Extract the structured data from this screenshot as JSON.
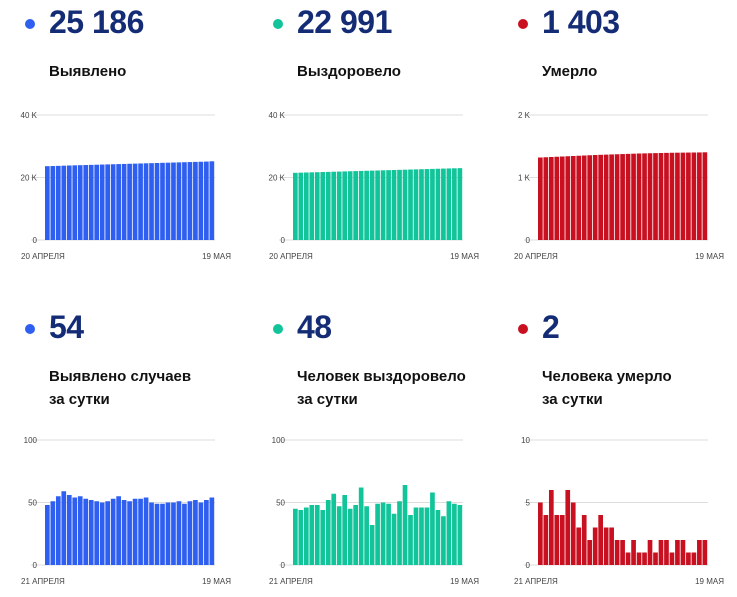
{
  "panels": [
    {
      "id": "detected",
      "value": "25 186",
      "label_lines": [
        "Выявлено"
      ],
      "color": "#2e5ff0",
      "chart": {
        "ylim": [
          0,
          40000
        ],
        "yticks": [
          "40 K",
          "20 K",
          "0"
        ],
        "x_start": "20 АПРЕЛЯ",
        "x_end": "19 МАЯ"
      }
    },
    {
      "id": "recovered",
      "value": "22 991",
      "label_lines": [
        "Выздоровело"
      ],
      "color": "#11c499",
      "chart": {
        "ylim": [
          0,
          40000
        ],
        "yticks": [
          "40 K",
          "20 K",
          "0"
        ],
        "x_start": "20 АПРЕЛЯ",
        "x_end": "19 МАЯ"
      }
    },
    {
      "id": "died",
      "value": "1 403",
      "label_lines": [
        "Умерло"
      ],
      "color": "#c81020",
      "chart": {
        "ylim": [
          0,
          2000
        ],
        "yticks": [
          "2 K",
          "1 K",
          "0"
        ],
        "x_start": "20 АПРЕЛЯ",
        "x_end": "19 МАЯ"
      }
    },
    {
      "id": "detected-daily",
      "value": "54",
      "label_lines": [
        "Выявлено случаев",
        "за сутки"
      ],
      "color": "#2e5ff0",
      "chart": {
        "ylim": [
          0,
          100
        ],
        "yticks": [
          "100",
          "50",
          "0"
        ],
        "x_start": "21 АПРЕЛЯ",
        "x_end": "19 МАЯ"
      }
    },
    {
      "id": "recovered-daily",
      "value": "48",
      "label_lines": [
        "Человек выздоровело",
        "за сутки"
      ],
      "color": "#11c499",
      "chart": {
        "ylim": [
          0,
          100
        ],
        "yticks": [
          "100",
          "50",
          "0"
        ],
        "x_start": "21 АПРЕЛЯ",
        "x_end": "19 МАЯ"
      }
    },
    {
      "id": "died-daily",
      "value": "2",
      "label_lines": [
        "Человека умерло",
        "за сутки"
      ],
      "color": "#c81020",
      "chart": {
        "ylim": [
          0,
          10
        ],
        "yticks": [
          "10",
          "5",
          "0"
        ],
        "x_start": "21 АПРЕЛЯ",
        "x_end": "19 МАЯ"
      }
    }
  ],
  "chart_data": [
    {
      "type": "bar",
      "title": "Выявлено",
      "ylim": [
        0,
        40000
      ],
      "values": [
        23620,
        23670,
        23720,
        23780,
        23840,
        23890,
        23940,
        23990,
        24040,
        24090,
        24140,
        24190,
        24240,
        24290,
        24340,
        24390,
        24440,
        24490,
        24540,
        24590,
        24640,
        24690,
        24740,
        24790,
        24840,
        24890,
        24940,
        24990,
        25040,
        25090,
        25186
      ]
    },
    {
      "type": "bar",
      "title": "Выздоровело",
      "ylim": [
        0,
        40000
      ],
      "values": [
        21500,
        21550,
        21600,
        21650,
        21700,
        21750,
        21800,
        21850,
        21900,
        21950,
        22000,
        22050,
        22100,
        22150,
        22200,
        22250,
        22300,
        22350,
        22400,
        22450,
        22500,
        22550,
        22600,
        22650,
        22700,
        22750,
        22800,
        22850,
        22900,
        22943,
        22991
      ]
    },
    {
      "type": "bar",
      "title": "Умерло",
      "ylim": [
        0,
        2000
      ],
      "values": [
        1320,
        1324,
        1328,
        1332,
        1336,
        1340,
        1344,
        1348,
        1352,
        1356,
        1360,
        1363,
        1366,
        1369,
        1372,
        1375,
        1378,
        1381,
        1384,
        1386,
        1388,
        1390,
        1392,
        1394,
        1396,
        1397,
        1398,
        1399,
        1400,
        1401,
        1403
      ]
    },
    {
      "type": "bar",
      "title": "Выявлено случаев за сутки",
      "ylim": [
        0,
        100
      ],
      "values": [
        48,
        51,
        55,
        59,
        56,
        54,
        55,
        53,
        52,
        51,
        50,
        51,
        53,
        55,
        52,
        51,
        53,
        53,
        54,
        50,
        49,
        49,
        50,
        50,
        51,
        49,
        51,
        52,
        50,
        52,
        54
      ]
    },
    {
      "type": "bar",
      "title": "Человек выздоровело за сутки",
      "ylim": [
        0,
        100
      ],
      "values": [
        45,
        44,
        46,
        48,
        48,
        44,
        52,
        57,
        47,
        56,
        45,
        48,
        62,
        47,
        32,
        49,
        50,
        49,
        41,
        51,
        64,
        40,
        46,
        46,
        46,
        58,
        44,
        39,
        51,
        49,
        48
      ]
    },
    {
      "type": "bar",
      "title": "Человека умерло за сутки",
      "ylim": [
        0,
        10
      ],
      "values": [
        5,
        4,
        6,
        4,
        4,
        6,
        5,
        3,
        4,
        2,
        3,
        4,
        3,
        3,
        2,
        2,
        1,
        2,
        1,
        1,
        2,
        1,
        2,
        2,
        1,
        2,
        2,
        1,
        1,
        2,
        2
      ]
    }
  ]
}
